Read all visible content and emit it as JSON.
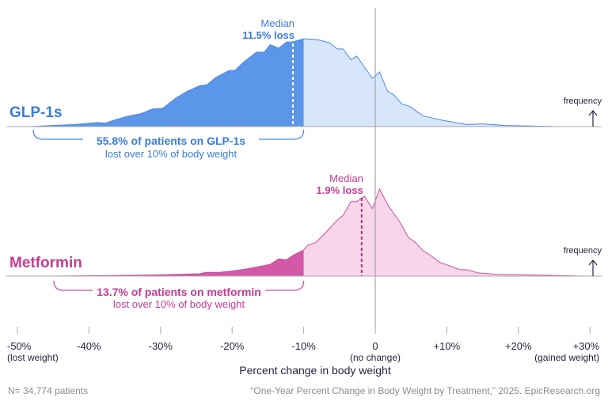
{
  "chart_data": [
    {
      "type": "area",
      "series_label": "GLP-1s",
      "median_label": "Median",
      "median_value_label": "11.5% loss",
      "median": -11.5,
      "threshold": -10,
      "bracket_title": "55.8% of patients on GLP-1s",
      "bracket_subtitle": "lost over 10% of body weight",
      "frequency_label": "frequency",
      "colors": {
        "dark": "#5b96e8",
        "light": "#d7e6fa",
        "line": "#4d8ae6",
        "text": "#3a7bdc"
      },
      "x": [
        -48.4,
        -42.1,
        -38.8,
        -37.7,
        -36.6,
        -34.7,
        -32.8,
        -31.1,
        -29.7,
        -27.8,
        -26.2,
        -24.5,
        -23.5,
        -22.3,
        -20.4,
        -19.6,
        -18.5,
        -16.6,
        -15.5,
        -14.7,
        -13.5,
        -12.4,
        -11.6,
        -10.0,
        -8.1,
        -6.4,
        -5.3,
        -4.5,
        -3.4,
        -2.6,
        -0.4,
        0.6,
        1.7,
        2.6,
        3.7,
        4.8,
        6.7,
        9.5,
        12.8,
        15.0,
        18.3,
        25.4
      ],
      "y": [
        0,
        2.4,
        4.6,
        4,
        7,
        11.6,
        14.6,
        20,
        20.7,
        32.9,
        40.5,
        46.6,
        47.6,
        55.8,
        64,
        64,
        72.6,
        84.8,
        84.8,
        93.3,
        89.3,
        96.3,
        96.3,
        100,
        99.1,
        95.4,
        88.4,
        88.4,
        76.2,
        80.2,
        54.9,
        62.2,
        40.5,
        36,
        25.9,
        22.9,
        12.2,
        7,
        2.4,
        3,
        1.2,
        0
      ]
    },
    {
      "type": "area",
      "series_label": "Metformin",
      "median_label": "Median",
      "median_value_label": "1.9% loss",
      "median": -1.9,
      "threshold": -10,
      "bracket_title": "13.7% of patients on metformin",
      "bracket_subtitle": "lost over 10% of body weight",
      "frequency_label": "frequency",
      "colors": {
        "dark": "#d358a8",
        "light": "#f7d6ea",
        "line": "#d04ea0",
        "text": "#c43c92"
      },
      "x": [
        -45.4,
        -31.1,
        -24.5,
        -23.7,
        -21.8,
        -20.1,
        -18.0,
        -14.7,
        -13.5,
        -12.4,
        -11.4,
        -10.0,
        -9.4,
        -8.3,
        -7.0,
        -5.3,
        -4.5,
        -3.4,
        -2.6,
        -1.5,
        -0.4,
        0.6,
        1.8,
        3.5,
        4.6,
        5.7,
        6.7,
        7.8,
        9.0,
        10.6,
        11.7,
        12.8,
        14.4,
        17.1,
        20.5,
        23.8,
        29.3
      ],
      "y": [
        0,
        1.2,
        2.7,
        4.3,
        4.3,
        5.8,
        8.2,
        13.4,
        19.8,
        18.8,
        24.3,
        30.1,
        35.6,
        38.6,
        49.2,
        64.4,
        69.6,
        85.7,
        85.7,
        91.8,
        77.5,
        100,
        81.2,
        61.4,
        44.7,
        38,
        28.9,
        23.4,
        15.8,
        11.2,
        7.6,
        7.3,
        3.6,
        2.1,
        1.5,
        0.9,
        0
      ]
    }
  ],
  "axis": {
    "xlim": [
      -50,
      30
    ],
    "ticks": [
      {
        "value": -50,
        "label": "-50%",
        "sublabel": "(lost weight)"
      },
      {
        "value": -40,
        "label": "-40%",
        "sublabel": ""
      },
      {
        "value": -30,
        "label": "-30%",
        "sublabel": ""
      },
      {
        "value": -20,
        "label": "-20%",
        "sublabel": ""
      },
      {
        "value": -10,
        "label": "-10%",
        "sublabel": ""
      },
      {
        "value": 0,
        "label": "0",
        "sublabel": "(no change)"
      },
      {
        "value": 10,
        "label": "+10%",
        "sublabel": ""
      },
      {
        "value": 20,
        "label": "+20%",
        "sublabel": ""
      },
      {
        "value": 30,
        "label": "+30%",
        "sublabel": "(gained weight)"
      }
    ],
    "xlabel": "Percent change in body weight"
  },
  "footer": {
    "n": "N= 34,774 patients",
    "source": "“One-Year Percent Change in Body Weight by Treatment,” 2025. EpicResearch.org"
  }
}
